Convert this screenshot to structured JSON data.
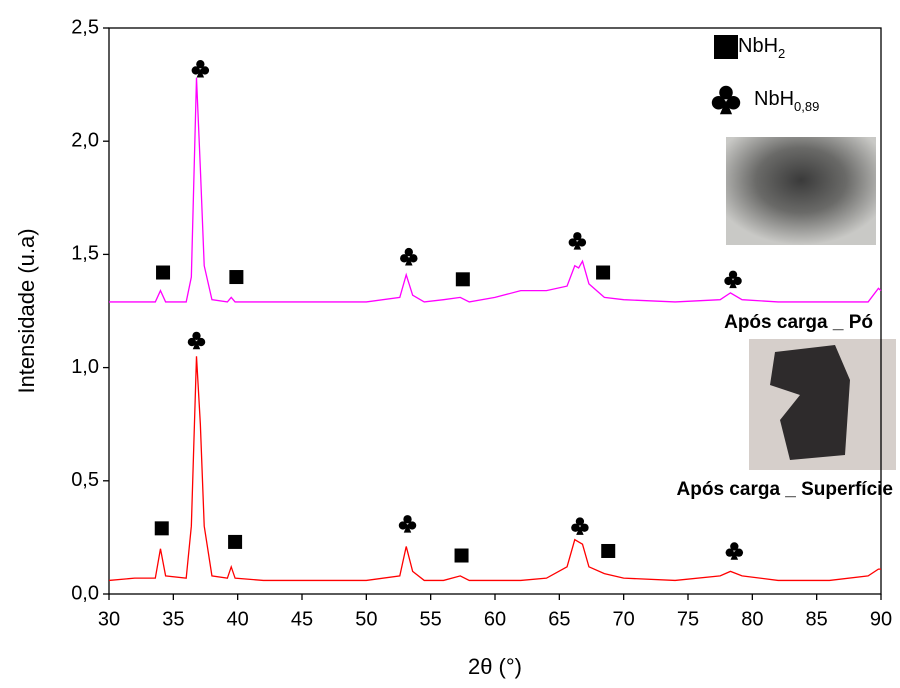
{
  "chart_data": {
    "type": "line",
    "xlabel": "2θ (°)",
    "ylabel": "Intensidade (u.a)",
    "xlim": [
      30,
      90
    ],
    "xticks": [
      30,
      35,
      40,
      45,
      50,
      55,
      60,
      65,
      70,
      75,
      80,
      85,
      90
    ],
    "ylim": [
      0,
      2.5
    ],
    "yticks": [
      {
        "value": 0,
        "label": "0,0"
      },
      {
        "value": 0.5,
        "label": "0,5"
      },
      {
        "value": 1,
        "label": "1,0"
      },
      {
        "value": 1.5,
        "label": "1,5"
      },
      {
        "value": 2,
        "label": "2,0"
      },
      {
        "value": 2.5,
        "label": "2,5"
      }
    ],
    "x": [
      30,
      32,
      33.6,
      34.0,
      34.4,
      36,
      36.4,
      36.8,
      37.1,
      37.4,
      38,
      39.2,
      39.5,
      39.8,
      42,
      46,
      50,
      52.6,
      53.1,
      53.6,
      54.5,
      56,
      57.3,
      58,
      60,
      62,
      64,
      65.6,
      66.2,
      66.5,
      66.8,
      67.3,
      68.5,
      70,
      74,
      77.5,
      78.3,
      79.2,
      82,
      86,
      89,
      89.8,
      90
    ],
    "series": [
      {
        "name": "Após carga _ Pó",
        "color": "#ff00ff",
        "values": [
          1.29,
          1.29,
          1.29,
          1.34,
          1.29,
          1.29,
          1.4,
          2.28,
          1.88,
          1.45,
          1.3,
          1.29,
          1.31,
          1.29,
          1.29,
          1.29,
          1.29,
          1.31,
          1.41,
          1.32,
          1.29,
          1.3,
          1.31,
          1.29,
          1.31,
          1.34,
          1.34,
          1.36,
          1.45,
          1.44,
          1.47,
          1.37,
          1.31,
          1.3,
          1.29,
          1.3,
          1.33,
          1.3,
          1.29,
          1.29,
          1.29,
          1.35,
          1.34
        ]
      },
      {
        "name": "Após carga _ Superfície",
        "color": "#ff0000",
        "values": [
          0.06,
          0.07,
          0.07,
          0.2,
          0.08,
          0.07,
          0.3,
          1.05,
          0.75,
          0.3,
          0.08,
          0.07,
          0.12,
          0.07,
          0.06,
          0.06,
          0.06,
          0.08,
          0.21,
          0.1,
          0.06,
          0.06,
          0.08,
          0.06,
          0.06,
          0.06,
          0.07,
          0.12,
          0.24,
          0.23,
          0.22,
          0.12,
          0.09,
          0.07,
          0.06,
          0.08,
          0.1,
          0.08,
          0.06,
          0.06,
          0.08,
          0.11,
          0.11
        ]
      }
    ],
    "phases": [
      {
        "symbol": "square",
        "label": "NbH",
        "subscript": "2",
        "x": [
          34.2,
          39.9,
          57.5,
          68.4,
          34.1,
          39.8,
          57.4,
          68.8
        ],
        "y": [
          1.42,
          1.4,
          1.39,
          1.42,
          0.29,
          0.23,
          0.17,
          0.19
        ]
      },
      {
        "symbol": "club",
        "label": "NbH",
        "subscript": "0,89",
        "x": [
          37.1,
          53.3,
          66.4,
          78.5,
          36.8,
          53.2,
          66.6,
          78.6
        ],
        "y": [
          2.32,
          1.49,
          1.56,
          1.39,
          1.12,
          0.31,
          0.3,
          0.19
        ]
      }
    ]
  }
}
